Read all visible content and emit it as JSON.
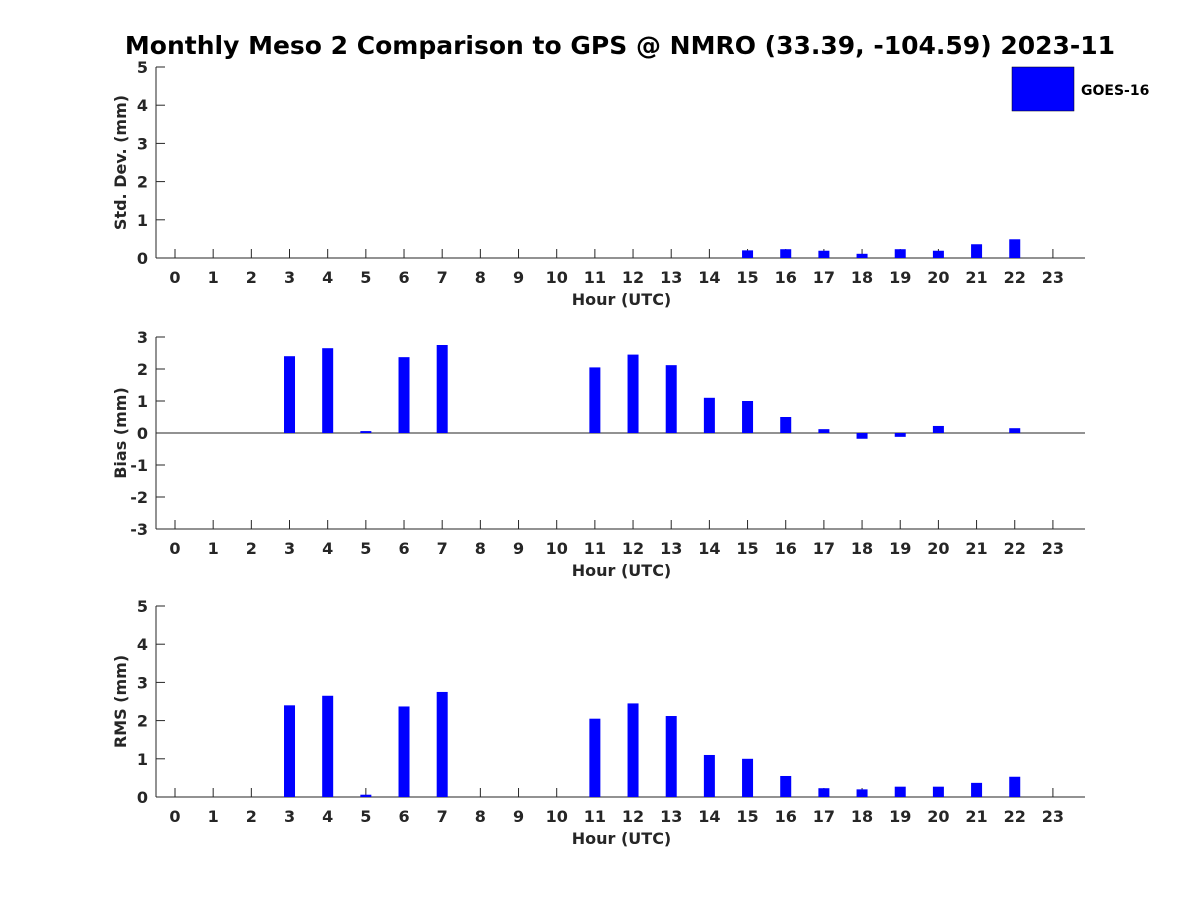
{
  "title": "Monthly Meso 2 Comparison to GPS @ NMRO (33.39, -104.59) 2023-11",
  "legend": {
    "label": "GOES-16",
    "color": "#0000ff",
    "placement": "top-right"
  },
  "chart_data": [
    {
      "type": "bar",
      "xlabel": "Hour (UTC)",
      "ylabel": "Std. Dev. (mm)",
      "ylim": [
        0,
        5
      ],
      "yticks": [
        0,
        1,
        2,
        3,
        4,
        5
      ],
      "categories": [
        "0",
        "1",
        "2",
        "3",
        "4",
        "5",
        "6",
        "7",
        "8",
        "9",
        "10",
        "11",
        "12",
        "13",
        "14",
        "15",
        "16",
        "17",
        "18",
        "19",
        "20",
        "21",
        "22",
        "23"
      ],
      "series": [
        {
          "name": "GOES-16",
          "color": "#0000ff",
          "values": [
            null,
            null,
            null,
            null,
            null,
            null,
            null,
            null,
            null,
            null,
            null,
            null,
            null,
            null,
            null,
            0.2,
            0.23,
            0.19,
            0.11,
            0.23,
            0.19,
            0.36,
            0.49,
            null
          ]
        }
      ]
    },
    {
      "type": "bar",
      "xlabel": "Hour (UTC)",
      "ylabel": "Bias (mm)",
      "ylim": [
        -3,
        3
      ],
      "yticks": [
        -3,
        -2,
        -1,
        0,
        1,
        2,
        3
      ],
      "categories": [
        "0",
        "1",
        "2",
        "3",
        "4",
        "5",
        "6",
        "7",
        "8",
        "9",
        "10",
        "11",
        "12",
        "13",
        "14",
        "15",
        "16",
        "17",
        "18",
        "19",
        "20",
        "21",
        "22",
        "23"
      ],
      "series": [
        {
          "name": "GOES-16",
          "color": "#0000ff",
          "values": [
            null,
            null,
            null,
            2.4,
            2.65,
            0.06,
            2.37,
            2.75,
            null,
            null,
            null,
            2.05,
            2.45,
            2.12,
            1.1,
            1.0,
            0.5,
            0.12,
            -0.18,
            -0.12,
            0.22,
            null,
            0.15,
            null
          ]
        }
      ]
    },
    {
      "type": "bar",
      "xlabel": "Hour (UTC)",
      "ylabel": "RMS (mm)",
      "ylim": [
        0,
        5
      ],
      "yticks": [
        0,
        1,
        2,
        3,
        4,
        5
      ],
      "categories": [
        "0",
        "1",
        "2",
        "3",
        "4",
        "5",
        "6",
        "7",
        "8",
        "9",
        "10",
        "11",
        "12",
        "13",
        "14",
        "15",
        "16",
        "17",
        "18",
        "19",
        "20",
        "21",
        "22",
        "23"
      ],
      "series": [
        {
          "name": "GOES-16",
          "color": "#0000ff",
          "values": [
            null,
            null,
            null,
            2.4,
            2.65,
            0.06,
            2.37,
            2.75,
            null,
            null,
            null,
            2.05,
            2.45,
            2.12,
            1.1,
            1.0,
            0.55,
            0.23,
            0.2,
            0.27,
            0.27,
            0.37,
            0.53,
            null
          ]
        }
      ]
    }
  ]
}
